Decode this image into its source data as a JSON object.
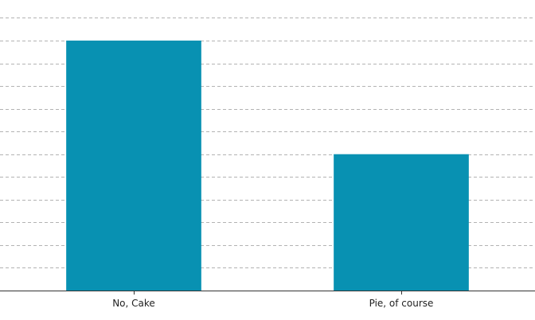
{
  "chart_data": {
    "type": "bar",
    "categories": [
      "No, Cake",
      "Pie, of course"
    ],
    "values": [
      11,
      6
    ],
    "ylim": [
      0,
      12.4
    ],
    "grid_step": 1,
    "grid": true,
    "grid_style": "dashed",
    "legend": "none",
    "colors": {
      "bar": "#0891B2",
      "grid": "#b3b3b3",
      "axis": "#333333"
    }
  }
}
